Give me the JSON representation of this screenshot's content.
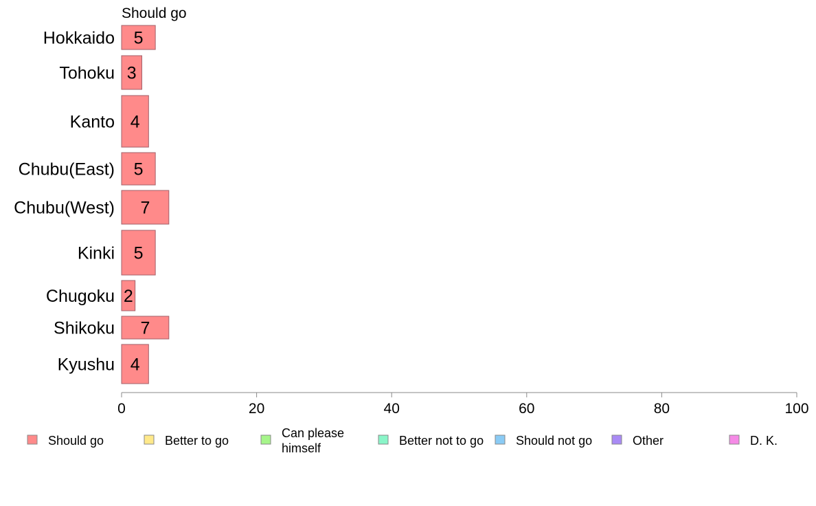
{
  "chart_data": {
    "type": "bar",
    "orientation": "horizontal",
    "stacked": true,
    "series_header": "Should go",
    "categories": [
      "Hokkaido",
      "Tohoku",
      "Kanto",
      "Chubu(East)",
      "Chubu(West)",
      "Kinki",
      "Chugoku",
      "Shikoku",
      "Kyushu"
    ],
    "series": [
      {
        "name": "Should go",
        "values": [
          5,
          3,
          4,
          5,
          7,
          5,
          2,
          7,
          4
        ],
        "color": "#ff8a8a"
      }
    ],
    "xlim": [
      0,
      100
    ],
    "xticks": [
      "0",
      "20",
      "40",
      "60",
      "80",
      "100"
    ],
    "grid": false,
    "legend_position": "bottom",
    "legend": [
      {
        "label": "Should go",
        "color": "#ff8a8a"
      },
      {
        "label": "Better to go",
        "color": "#ffe98a"
      },
      {
        "label": [
          "Can please",
          "himself"
        ],
        "color": "#a6f58a"
      },
      {
        "label": "Better not to go",
        "color": "#8af5c8"
      },
      {
        "label": "Should not go",
        "color": "#8acbf5"
      },
      {
        "label": "Other",
        "color": "#a98af5"
      },
      {
        "label": "D. K.",
        "color": "#f58ae6"
      }
    ]
  }
}
